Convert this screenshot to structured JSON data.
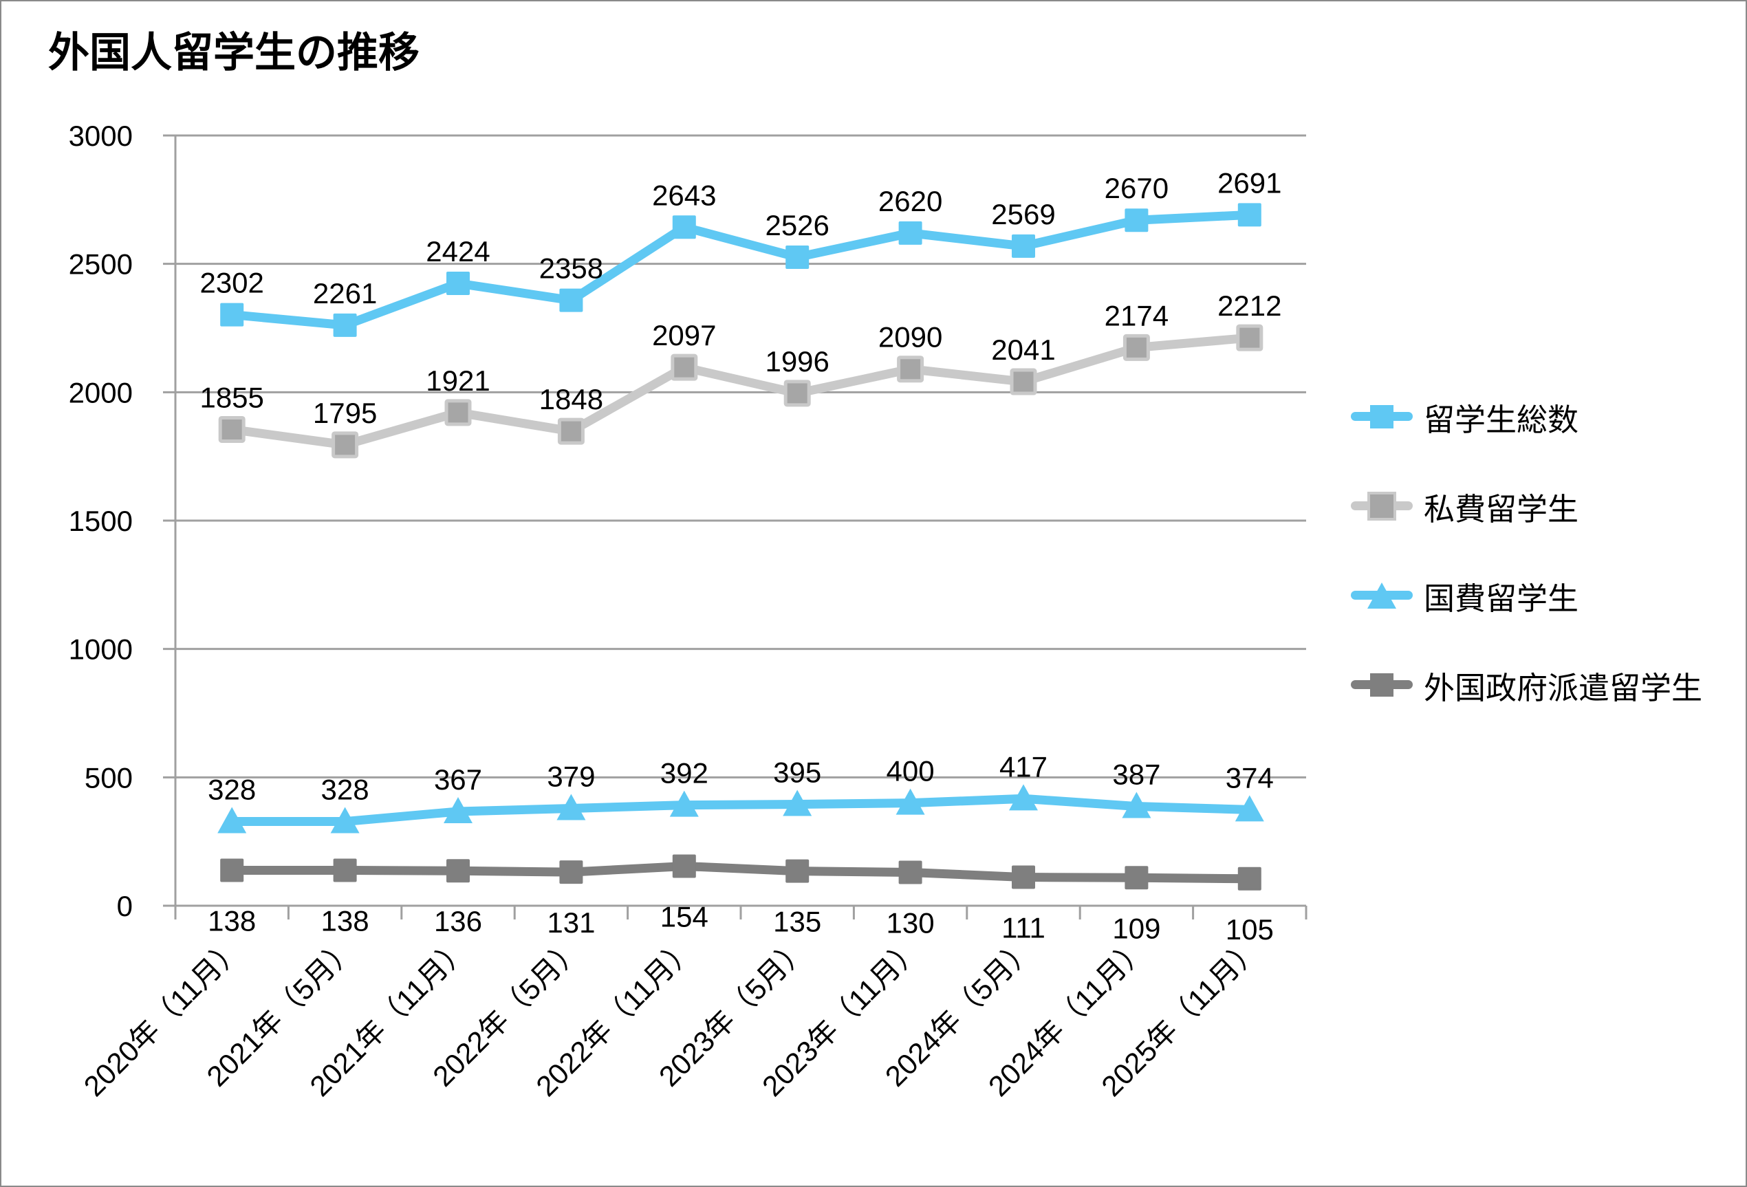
{
  "chart_data": {
    "type": "line",
    "title": "外国人留学生の推移",
    "categories": [
      "2020年（11月）",
      "2021年（5月）",
      "2021年（11月）",
      "2022年（5月）",
      "2022年（11月）",
      "2023年（5月）",
      "2023年（11月）",
      "2024年（5月）",
      "2024年（11月）",
      "2025年（11月）"
    ],
    "series": [
      {
        "name": "留学生総数",
        "values": [
          2302,
          2261,
          2424,
          2358,
          2643,
          2526,
          2620,
          2569,
          2670,
          2691
        ],
        "color": "#5FC8F3",
        "marker": "square",
        "label_position": "above"
      },
      {
        "name": "私費留学生",
        "values": [
          1855,
          1795,
          1921,
          1848,
          2097,
          1996,
          2090,
          2041,
          2174,
          2212
        ],
        "color": "#C9C9C9",
        "marker": "square",
        "marker_color": "#A6A6A6",
        "marker_stroke": "#C9C9C9",
        "label_position": "above"
      },
      {
        "name": "国費留学生",
        "values": [
          328,
          328,
          367,
          379,
          392,
          395,
          400,
          417,
          387,
          374
        ],
        "color": "#5FC8F3",
        "marker": "triangle",
        "label_position": "above"
      },
      {
        "name": "外国政府派遣留学生",
        "values": [
          138,
          138,
          136,
          131,
          154,
          135,
          130,
          111,
          109,
          105
        ],
        "color": "#7F7F7F",
        "marker": "square",
        "label_position": "below"
      }
    ],
    "y_axis": {
      "min": 0,
      "max": 3000,
      "step": 500,
      "ticks": [
        "0",
        "500",
        "1000",
        "1500",
        "2000",
        "2500",
        "3000"
      ]
    },
    "grid": true,
    "legend_position": "right",
    "colors": {
      "grid": "#A0A0A0",
      "text": "#000000"
    }
  }
}
